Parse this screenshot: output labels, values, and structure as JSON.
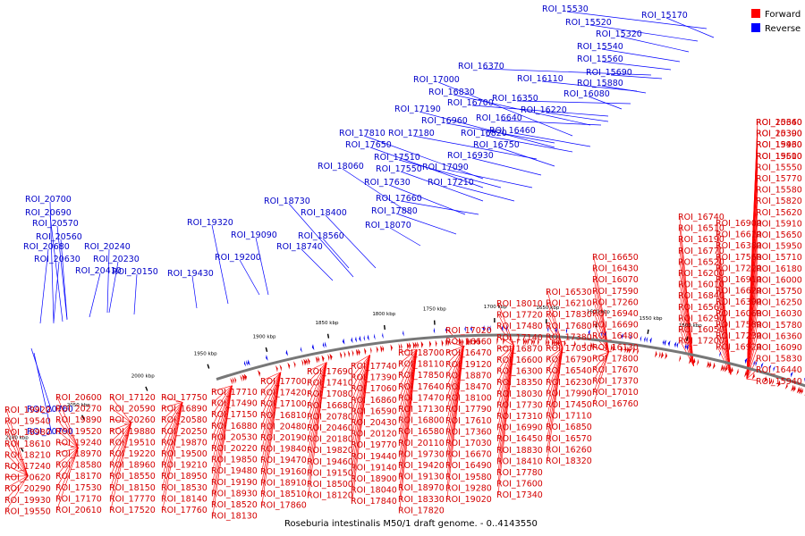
{
  "caption": "Roseburia intestinalis M50/1 draft genome. - 0..4143550",
  "legend": {
    "forward_label": "Forward",
    "reverse_label": "Reverse",
    "forward_color": "#ff0000",
    "reverse_color": "#0000ff"
  },
  "colors": {
    "forward_feature": "#e00000",
    "reverse_feature": "#0000ee",
    "forward_callout": "#ff0000",
    "reverse_callout": "#0000ff",
    "ring": "#777777"
  },
  "ticks": [
    "1500 kbp",
    "1550 kbp",
    "1600 kbp",
    "1650 kbp",
    "1700 kbp",
    "1750 kbp",
    "1800 kbp",
    "1850 kbp",
    "1900 kbp",
    "1950 kbp",
    "2000 kbp",
    "2050 kbp",
    "2100 kbp"
  ],
  "reverse_labels": [
    "ROI_15530",
    "ROI_15520",
    "ROI_15170",
    "ROI_15320",
    "ROI_15540",
    "ROI_15560",
    "ROI_16370",
    "ROI_15690",
    "ROI_16110",
    "ROI_15880",
    "ROI_16350",
    "ROI_16080",
    "ROI_17000",
    "ROI_16830",
    "ROI_16700",
    "ROI_17190",
    "ROI_16640",
    "ROI_16220",
    "ROI_16960",
    "ROI_17810",
    "ROI_17180",
    "ROI_16820",
    "ROI_16460",
    "ROI_17650",
    "ROI_16750",
    "ROI_17510",
    "ROI_16930",
    "ROI_18060",
    "ROI_17550",
    "ROI_17090",
    "ROI_17630",
    "ROI_17210",
    "ROI_18730",
    "ROI_17660",
    "ROI_20700",
    "ROI_18400",
    "ROI_17880",
    "ROI_20690",
    "ROI_18070",
    "ROI_19320",
    "ROI_20570",
    "ROI_18560",
    "ROI_19090",
    "ROI_20560",
    "ROI_18740",
    "ROI_20680",
    "ROI_20240",
    "ROI_20630",
    "ROI_20230",
    "ROI_19200",
    "ROI_20410",
    "ROI_20150",
    "ROI_19430",
    "ROI_20760",
    "ROI_20790"
  ],
  "forward_labels": [
    "ROI_15340",
    "ROI_15390",
    "ROI_15430",
    "ROI_15500",
    "ROI_15550",
    "ROI_15770",
    "ROI_15580",
    "ROI_15820",
    "ROI_15620",
    "ROI_15910",
    "ROI_15650",
    "ROI_15950",
    "ROI_15710",
    "ROI_16180",
    "ROI_16000",
    "ROI_15750",
    "ROI_16250",
    "ROI_16030",
    "ROI_15780",
    "ROI_16360",
    "ROI_16090",
    "ROI_15830",
    "ROI_16440",
    "ROI_15940",
    "ROI_16740",
    "ROI_16510",
    "ROI_16190",
    "ROI_16770",
    "ROI_16520",
    "ROI_16200",
    "ROI_16010",
    "ROI_16840",
    "ROI_16560",
    "ROI_16290",
    "ROI_16050",
    "ROI_17200",
    "ROI_16900",
    "ROI_16610",
    "ROI_16380",
    "ROI_17560",
    "ROI_17220",
    "ROI_16910",
    "ROI_16620",
    "ROI_16390",
    "ROI_16060",
    "ROI_17580",
    "ROI_17230",
    "ROI_16920",
    "ROI_16650",
    "ROI_16430",
    "ROI_16070",
    "ROI_17590",
    "ROI_17260",
    "ROI_16940",
    "ROI_16690",
    "ROI_16480",
    "ROI_16130",
    "ROI_17800",
    "ROI_17670",
    "ROI_17370",
    "ROI_17010",
    "ROI_16760",
    "ROI_16530",
    "ROI_16210",
    "ROI_17830",
    "ROI_17680",
    "ROI_17380",
    "ROI_17050",
    "ROI_16790",
    "ROI_16540",
    "ROI_16230",
    "ROI_17990",
    "ROI_17450",
    "ROI_17110",
    "ROI_16850",
    "ROI_16570",
    "ROI_16260",
    "ROI_18320",
    "ROI_18010",
    "ROI_17720",
    "ROI_17480",
    "ROI_17140",
    "ROI_16870",
    "ROI_16600",
    "ROI_16300",
    "ROI_18350",
    "ROI_18030",
    "ROI_17730",
    "ROI_17310",
    "ROI_16990",
    "ROI_16450",
    "ROI_18830",
    "ROI_18410",
    "ROI_17780",
    "ROI_17600",
    "ROI_17340",
    "ROI_17020",
    "ROI_16660",
    "ROI_16470",
    "ROI_19120",
    "ROI_18870",
    "ROI_18470",
    "ROI_18100",
    "ROI_17790",
    "ROI_17610",
    "ROI_17360",
    "ROI_17030",
    "ROI_16670",
    "ROI_16490",
    "ROI_19580",
    "ROI_19280",
    "ROI_19020",
    "ROI_18700",
    "ROI_18110",
    "ROI_17850",
    "ROI_17640",
    "ROI_17470",
    "ROI_17130",
    "ROI_16800",
    "ROI_16580",
    "ROI_20110",
    "ROI_19730",
    "ROI_19420",
    "ROI_19130",
    "ROI_18970",
    "ROI_18330",
    "ROI_17820",
    "ROI_17740",
    "ROI_17390",
    "ROI_17060",
    "ROI_16860",
    "ROI_16590",
    "ROI_20430",
    "ROI_20120",
    "ROI_19770",
    "ROI_19440",
    "ROI_19140",
    "ROI_18900",
    "ROI_18040",
    "ROI_17840",
    "ROI_17690",
    "ROI_17410",
    "ROI_17080",
    "ROI_16680",
    "ROI_20780",
    "ROI_20460",
    "ROI_20180",
    "ROI_19820",
    "ROI_19460",
    "ROI_19150",
    "ROI_18500",
    "ROI_18120",
    "ROI_17700",
    "ROI_17420",
    "ROI_17100",
    "ROI_16810",
    "ROI_20480",
    "ROI_20190",
    "ROI_19840",
    "ROI_19470",
    "ROI_19160",
    "ROI_18910",
    "ROI_18510",
    "ROI_17860",
    "ROI_17710",
    "ROI_17490",
    "ROI_17150",
    "ROI_16880",
    "ROI_20530",
    "ROI_20220",
    "ROI_19850",
    "ROI_19480",
    "ROI_19190",
    "ROI_18930",
    "ROI_18520",
    "ROI_18130",
    "ROI_17750",
    "ROI_16890",
    "ROI_20580",
    "ROI_20250",
    "ROI_19870",
    "ROI_19500",
    "ROI_19210",
    "ROI_18950",
    "ROI_18530",
    "ROI_18140",
    "ROI_17760",
    "ROI_17500",
    "ROI_17120",
    "ROI_20590",
    "ROI_20260",
    "ROI_19880",
    "ROI_19510",
    "ROI_19220",
    "ROI_18960",
    "ROI_18550",
    "ROI_18150",
    "ROI_17770",
    "ROI_17520",
    "ROI_17160",
    "ROI_20600",
    "ROI_20270",
    "ROI_19890",
    "ROI_19520",
    "ROI_19240",
    "ROI_18970",
    "ROI_18580",
    "ROI_18170",
    "ROI_17530",
    "ROI_17170",
    "ROI_20610",
    "ROI_20280",
    "ROI_19920",
    "ROI_19540",
    "ROI_18980",
    "ROI_18610",
    "ROI_18210",
    "ROI_17240",
    "ROI_20620",
    "ROI_20290",
    "ROI_19930",
    "ROI_19550",
    "ROI_20660",
    "ROI_20300",
    "ROI_19960",
    "ROI_19610"
  ]
}
